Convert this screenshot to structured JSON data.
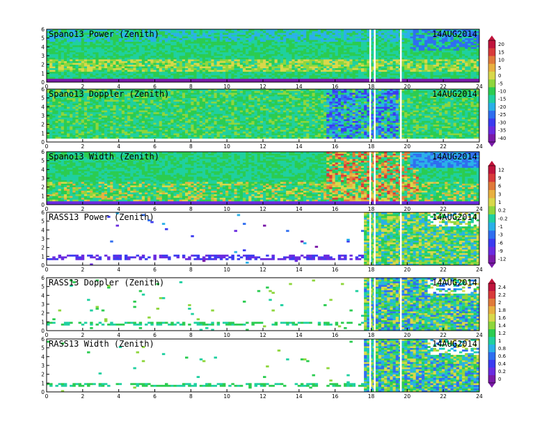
{
  "chart_data": [
    {
      "type": "heatmap",
      "title": "Spano13 Power (Zenith)",
      "date": "14AUG2014",
      "x": {
        "min": 0,
        "max": 24,
        "ticks": [
          "0",
          "2",
          "4",
          "6",
          "8",
          "10",
          "12",
          "14",
          "16",
          "18",
          "20",
          "22",
          "24"
        ]
      },
      "y": {
        "min": 0,
        "max": 6,
        "ticks": [
          "0",
          "1",
          "2",
          "3",
          "4",
          "5",
          "6"
        ]
      },
      "colorbar": {
        "min": -40,
        "max": 20,
        "labels": [
          "20",
          "15",
          "10",
          "5",
          "0",
          "-5",
          "-10",
          "-15",
          "-20",
          "-25",
          "-30",
          "-35",
          "-40"
        ]
      }
    },
    {
      "type": "heatmap",
      "title": "Spano13 Doppler (Zenith)",
      "date": "14AUG2014",
      "x": {
        "min": 0,
        "max": 24,
        "ticks": [
          "0",
          "2",
          "4",
          "6",
          "8",
          "10",
          "12",
          "14",
          "16",
          "18",
          "20",
          "22",
          "24"
        ]
      },
      "y": {
        "min": 0,
        "max": 6,
        "ticks": [
          "0",
          "1",
          "2",
          "3",
          "4",
          "5",
          "6"
        ]
      }
    },
    {
      "type": "heatmap",
      "title": "Spano13 Width (Zenith)",
      "date": "14AUG2014",
      "x": {
        "min": 0,
        "max": 24,
        "ticks": [
          "0",
          "2",
          "4",
          "6",
          "8",
          "10",
          "12",
          "14",
          "16",
          "18",
          "20",
          "22",
          "24"
        ]
      },
      "y": {
        "min": 0,
        "max": 6,
        "ticks": [
          "0",
          "1",
          "2",
          "3",
          "4",
          "5",
          "6"
        ]
      },
      "colorbar": {
        "min": -12,
        "max": 12,
        "labels": [
          "12",
          "9",
          "6",
          "3",
          "1",
          "0.2",
          "-0.2",
          "-1",
          "-3",
          "-6",
          "-9",
          "-12"
        ]
      }
    },
    {
      "type": "heatmap",
      "title": "RASS13 Power (Zenith)",
      "date": "14AUG2014",
      "x": {
        "min": 0,
        "max": 24,
        "ticks": [
          "0",
          "2",
          "4",
          "6",
          "8",
          "10",
          "12",
          "14",
          "16",
          "18",
          "20",
          "22",
          "24"
        ]
      },
      "y": {
        "min": 0,
        "max": 6,
        "ticks": [
          "0",
          "1",
          "2",
          "3",
          "4",
          "5",
          "6"
        ]
      }
    },
    {
      "type": "heatmap",
      "title": "RASS13 Doppler (Zenith)",
      "date": "14AUG2014",
      "x": {
        "min": 0,
        "max": 24,
        "ticks": [
          "0",
          "2",
          "4",
          "6",
          "8",
          "10",
          "12",
          "14",
          "16",
          "18",
          "20",
          "22",
          "24"
        ]
      },
      "y": {
        "min": 0,
        "max": 6,
        "ticks": [
          "0",
          "1",
          "2",
          "3",
          "4",
          "5",
          "6"
        ]
      },
      "colorbar": {
        "min": 0,
        "max": 2.4,
        "labels": [
          "2.4",
          "2.2",
          "2",
          "1.8",
          "1.6",
          "1.4",
          "1.2",
          "1",
          "0.8",
          "0.6",
          "0.4",
          "0.2",
          "0"
        ]
      }
    },
    {
      "type": "heatmap",
      "title": "RASS13 Width (Zenith)",
      "date": "14AUG2014",
      "x": {
        "min": 0,
        "max": 24,
        "ticks": [
          "0",
          "2",
          "4",
          "6",
          "8",
          "10",
          "12",
          "14",
          "16",
          "18",
          "20",
          "22",
          "24"
        ]
      },
      "y": {
        "min": 0,
        "max": 6,
        "ticks": [
          "0",
          "1",
          "2",
          "3",
          "4",
          "5",
          "6"
        ]
      }
    }
  ],
  "colors": {
    "scale": [
      "#7a1aa8",
      "#6a2be0",
      "#3b3bf0",
      "#2f6ef0",
      "#2ab0e8",
      "#1fd0a0",
      "#2bcc50",
      "#8ed63c",
      "#d8d84a",
      "#e8b040",
      "#e07a3a",
      "#d83a3a",
      "#c0143c"
    ]
  }
}
